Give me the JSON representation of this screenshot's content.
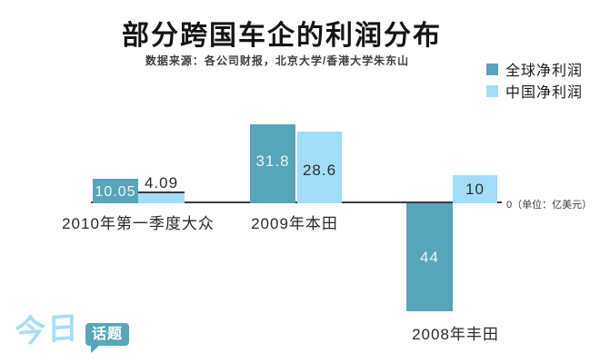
{
  "header": {
    "title": "部分跨国车企的利润分布",
    "subtitle": "数据来源：各公司财报，北京大学/香港大学朱东山"
  },
  "legend": {
    "items": [
      {
        "label": "全球净利润",
        "color": "#57a5b8"
      },
      {
        "label": "中国净利润",
        "color": "#a2ddf8"
      }
    ]
  },
  "axis": {
    "zero_label": "0（单位：亿美元）"
  },
  "logo": {
    "part1": "今日",
    "part2": "话题"
  },
  "chart_data": {
    "type": "bar",
    "title": "部分跨国车企的利润分布",
    "subtitle": "数据来源：各公司财报，北京大学/香港大学朱东山",
    "unit": "亿美元",
    "categories": [
      "2010年第一季度大众",
      "2009年本田",
      "2008年丰田"
    ],
    "series": [
      {
        "name": "全球净利润",
        "color": "#57a5b8",
        "values": [
          10.05,
          31.8,
          -44
        ],
        "display_labels": [
          "10.05",
          "31.8",
          "44"
        ]
      },
      {
        "name": "中国净利润",
        "color": "#a2ddf8",
        "values": [
          4.09,
          28.6,
          10
        ],
        "display_labels": [
          "4.09",
          "28.6",
          "10"
        ]
      }
    ],
    "baseline": 0,
    "ylim": [
      -44,
      32
    ],
    "grid": false,
    "legend_position": "top-right",
    "notes": "2008年丰田全球净利润为负值，其柱形绘制在零轴下方"
  }
}
